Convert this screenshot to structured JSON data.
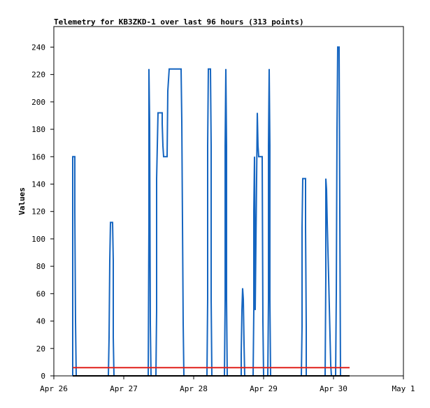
{
  "chart_data": {
    "type": "line",
    "title": "Telemetry for KB3ZKD-1 over last 96 hours (313 points)",
    "ylabel": "Values",
    "xlim": [
      0,
      5
    ],
    "ylim": [
      0,
      255
    ],
    "xticks": [
      {
        "value": 0,
        "label": "Apr 26"
      },
      {
        "value": 1,
        "label": "Apr 27"
      },
      {
        "value": 2,
        "label": "Apr 28"
      },
      {
        "value": 3,
        "label": "Apr 29"
      },
      {
        "value": 4,
        "label": "Apr 30"
      },
      {
        "value": 5,
        "label": "May 1"
      }
    ],
    "yticks": [
      0,
      20,
      40,
      60,
      80,
      100,
      120,
      140,
      160,
      180,
      200,
      220,
      240
    ],
    "series": [
      {
        "color": "#1565c0",
        "x": [
          0.27,
          0.27,
          0.3,
          0.3,
          0.31,
          0.32,
          0.78,
          0.79,
          0.8,
          0.81,
          0.84,
          0.85,
          0.85,
          0.86,
          1.35,
          1.36,
          1.36,
          1.37,
          1.38,
          1.39,
          1.46,
          1.47,
          1.47,
          1.49,
          1.55,
          1.55,
          1.56,
          1.57,
          1.62,
          1.63,
          1.65,
          1.82,
          1.83,
          1.84,
          1.85,
          1.86,
          2.19,
          2.2,
          2.2,
          2.21,
          2.24,
          2.25,
          2.25,
          2.26,
          2.44,
          2.45,
          2.45,
          2.46,
          2.47,
          2.47,
          2.48,
          2.68,
          2.68,
          2.69,
          2.7,
          2.71,
          2.72,
          2.73,
          2.85,
          2.86,
          2.86,
          2.87,
          2.88,
          2.9,
          2.91,
          2.92,
          2.93,
          2.98,
          2.99,
          3.0,
          3.06,
          3.07,
          3.07,
          3.08,
          3.09,
          3.09,
          3.1,
          3.54,
          3.55,
          3.55,
          3.56,
          3.6,
          3.6,
          3.61,
          3.61,
          3.88,
          3.89,
          3.89,
          3.9,
          3.91,
          3.93,
          3.96,
          3.97,
          4.03,
          4.04,
          4.05,
          4.06,
          4.08,
          4.09,
          4.1,
          4.23
        ],
        "values": [
          0,
          160,
          160,
          120,
          40,
          0,
          0,
          28,
          84,
          112,
          112,
          84,
          28,
          0,
          0,
          112,
          224,
          186,
          38,
          0,
          0,
          48,
          144,
          192,
          192,
          184,
          168,
          160,
          160,
          208,
          224,
          224,
          186,
          112,
          38,
          0,
          0,
          56,
          168,
          224,
          224,
          168,
          56,
          0,
          0,
          56,
          168,
          224,
          168,
          56,
          0,
          0,
          16,
          48,
          64,
          56,
          24,
          0,
          0,
          48,
          120,
          160,
          48,
          144,
          192,
          168,
          160,
          160,
          40,
          0,
          0,
          56,
          168,
          224,
          168,
          56,
          0,
          0,
          36,
          108,
          144,
          144,
          108,
          36,
          0,
          0,
          72,
          144,
          136,
          112,
          72,
          8,
          0,
          0,
          60,
          180,
          240,
          240,
          120,
          0,
          0
        ]
      },
      {
        "color": "#e0201b",
        "x": [
          0.27,
          4.23
        ],
        "values": [
          6,
          6
        ]
      },
      {
        "color": "#000000",
        "x": [
          0.27,
          4.23
        ],
        "values": [
          0,
          0
        ]
      }
    ]
  }
}
